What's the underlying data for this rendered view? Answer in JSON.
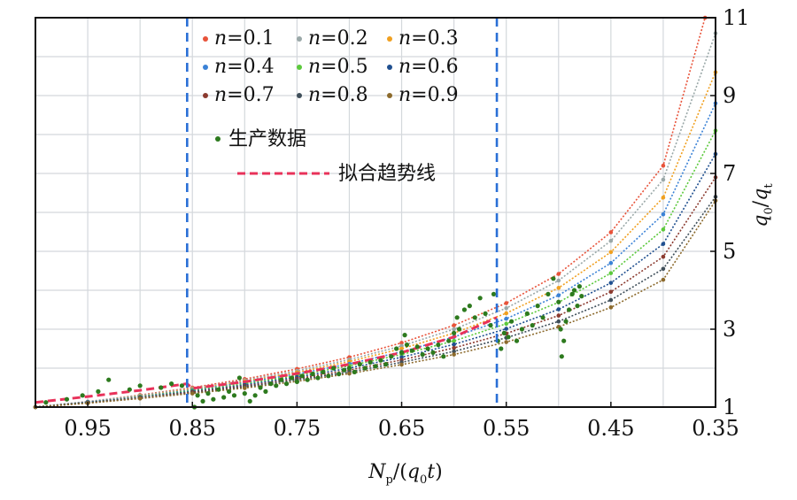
{
  "chart_data": {
    "type": "line",
    "xlabel": "Np/(q0t)",
    "ylabel": "q0/qt",
    "x_axis": {
      "reversed": true,
      "xlim": [
        1.0,
        0.35
      ],
      "ticks": [
        0.95,
        0.85,
        0.75,
        0.65,
        0.55,
        0.45,
        0.35
      ],
      "tick_labels": [
        "0.95",
        "0.85",
        "0.75",
        "0.65",
        "0.55",
        "0.45",
        "0.35"
      ]
    },
    "y_axis": {
      "position": "right",
      "ylim": [
        1,
        11
      ],
      "ticks": [
        1,
        3,
        5,
        7,
        9,
        11
      ],
      "tick_labels": [
        "1",
        "3",
        "5",
        "7",
        "9",
        "11"
      ]
    },
    "grid": true,
    "legend_position": "top",
    "vertical_markers": [
      0.855,
      0.559
    ],
    "series": [
      {
        "name": "n=0.1",
        "n_label": "n",
        "value_label": "=0.1",
        "color": "#e8533a",
        "x": [
          1.0,
          0.95,
          0.9,
          0.85,
          0.8,
          0.75,
          0.7,
          0.65,
          0.6,
          0.55,
          0.5,
          0.45,
          0.4,
          0.36
        ],
        "y": [
          1.0,
          1.14,
          1.31,
          1.5,
          1.72,
          1.98,
          2.28,
          2.65,
          3.1,
          3.67,
          4.42,
          5.49,
          7.2,
          11.0
        ]
      },
      {
        "name": "n=0.2",
        "n_label": "n",
        "value_label": "=0.2",
        "color": "#9aa8a8",
        "x": [
          1.0,
          0.95,
          0.9,
          0.85,
          0.8,
          0.75,
          0.7,
          0.65,
          0.6,
          0.55,
          0.5,
          0.45,
          0.4,
          0.35
        ],
        "y": [
          1.0,
          1.14,
          1.3,
          1.48,
          1.69,
          1.93,
          2.22,
          2.57,
          3.0,
          3.54,
          4.25,
          5.27,
          6.84,
          10.6
        ]
      },
      {
        "name": "n=0.3",
        "n_label": "n",
        "value_label": "=0.3",
        "color": "#f0a020",
        "x": [
          1.0,
          0.95,
          0.9,
          0.85,
          0.8,
          0.75,
          0.7,
          0.65,
          0.6,
          0.55,
          0.5,
          0.45,
          0.4,
          0.35
        ],
        "y": [
          1.0,
          1.13,
          1.28,
          1.46,
          1.66,
          1.89,
          2.17,
          2.5,
          2.9,
          3.41,
          4.06,
          4.98,
          6.38,
          9.6
        ]
      },
      {
        "name": "n=0.4",
        "n_label": "n",
        "value_label": "=0.4",
        "color": "#3b82d6",
        "x": [
          1.0,
          0.95,
          0.9,
          0.85,
          0.8,
          0.75,
          0.7,
          0.65,
          0.6,
          0.55,
          0.5,
          0.45,
          0.4,
          0.35
        ],
        "y": [
          1.0,
          1.13,
          1.27,
          1.44,
          1.63,
          1.85,
          2.11,
          2.42,
          2.8,
          3.27,
          3.87,
          4.7,
          5.95,
          8.8
        ]
      },
      {
        "name": "n=0.5",
        "n_label": "n",
        "value_label": "=0.5",
        "color": "#5cc93c",
        "x": [
          1.0,
          0.95,
          0.9,
          0.85,
          0.8,
          0.75,
          0.7,
          0.65,
          0.6,
          0.55,
          0.5,
          0.45,
          0.4,
          0.35
        ],
        "y": [
          1.0,
          1.12,
          1.26,
          1.42,
          1.6,
          1.81,
          2.06,
          2.35,
          2.7,
          3.14,
          3.69,
          4.44,
          5.56,
          8.1
        ]
      },
      {
        "name": "n=0.6",
        "n_label": "n",
        "value_label": "=0.6",
        "color": "#1f4f8f",
        "x": [
          1.0,
          0.95,
          0.9,
          0.85,
          0.8,
          0.75,
          0.7,
          0.65,
          0.6,
          0.55,
          0.5,
          0.45,
          0.4,
          0.35
        ],
        "y": [
          1.0,
          1.12,
          1.25,
          1.4,
          1.57,
          1.77,
          2.0,
          2.28,
          2.61,
          3.01,
          3.51,
          4.19,
          5.19,
          7.5
        ]
      },
      {
        "name": "n=0.7",
        "n_label": "n",
        "value_label": "=0.7",
        "color": "#8b3a2f",
        "x": [
          1.0,
          0.95,
          0.9,
          0.85,
          0.8,
          0.75,
          0.7,
          0.65,
          0.6,
          0.55,
          0.5,
          0.45,
          0.4,
          0.35
        ],
        "y": [
          1.0,
          1.11,
          1.24,
          1.38,
          1.54,
          1.73,
          1.95,
          2.21,
          2.52,
          2.89,
          3.35,
          3.96,
          4.86,
          6.9
        ]
      },
      {
        "name": "n=0.8",
        "n_label": "n",
        "value_label": "=0.8",
        "color": "#3f4f5a",
        "x": [
          1.0,
          0.95,
          0.9,
          0.85,
          0.8,
          0.75,
          0.7,
          0.65,
          0.6,
          0.55,
          0.5,
          0.45,
          0.4,
          0.35
        ],
        "y": [
          1.0,
          1.11,
          1.23,
          1.36,
          1.52,
          1.7,
          1.9,
          2.15,
          2.43,
          2.78,
          3.2,
          3.75,
          4.55,
          6.4
        ]
      },
      {
        "name": "n=0.9",
        "n_label": "n",
        "value_label": "=0.9",
        "color": "#8c6a2c",
        "x": [
          1.0,
          0.95,
          0.9,
          0.85,
          0.8,
          0.75,
          0.7,
          0.65,
          0.6,
          0.55,
          0.5,
          0.45,
          0.4,
          0.35
        ],
        "y": [
          1.0,
          1.1,
          1.22,
          1.35,
          1.49,
          1.66,
          1.86,
          2.09,
          2.35,
          2.67,
          3.06,
          3.56,
          4.27,
          6.3
        ]
      },
      {
        "name": "拟合趋势线",
        "style": "dashed",
        "color": "#e8325a",
        "x": [
          1.0,
          0.95,
          0.9,
          0.855,
          0.85,
          0.8,
          0.75,
          0.7,
          0.65,
          0.6,
          0.559
        ],
        "y": [
          1.12,
          1.27,
          1.43,
          1.6,
          1.48,
          1.65,
          1.86,
          2.1,
          2.4,
          2.8,
          3.3
        ]
      },
      {
        "name": "生产数据",
        "style": "scatter",
        "color": "#2d7a1e",
        "points": [
          [
            0.99,
            1.12
          ],
          [
            0.97,
            1.2
          ],
          [
            0.955,
            1.3
          ],
          [
            0.94,
            1.4
          ],
          [
            0.93,
            1.7
          ],
          [
            0.91,
            1.45
          ],
          [
            0.9,
            1.55
          ],
          [
            0.88,
            1.5
          ],
          [
            0.87,
            1.6
          ],
          [
            0.86,
            1.55
          ],
          [
            0.848,
            1.0
          ],
          [
            0.845,
            1.3
          ],
          [
            0.84,
            1.15
          ],
          [
            0.835,
            1.35
          ],
          [
            0.83,
            1.2
          ],
          [
            0.825,
            1.45
          ],
          [
            0.82,
            1.25
          ],
          [
            0.815,
            1.4
          ],
          [
            0.81,
            1.3
          ],
          [
            0.805,
            1.75
          ],
          [
            0.8,
            1.35
          ],
          [
            0.795,
            1.15
          ],
          [
            0.79,
            1.3
          ],
          [
            0.785,
            1.5
          ],
          [
            0.78,
            1.4
          ],
          [
            0.775,
            1.6
          ],
          [
            0.77,
            1.55
          ],
          [
            0.765,
            1.7
          ],
          [
            0.76,
            1.6
          ],
          [
            0.755,
            1.75
          ],
          [
            0.75,
            1.65
          ],
          [
            0.745,
            1.8
          ],
          [
            0.74,
            1.7
          ],
          [
            0.735,
            1.85
          ],
          [
            0.73,
            1.75
          ],
          [
            0.725,
            1.9
          ],
          [
            0.72,
            1.8
          ],
          [
            0.715,
            2.0
          ],
          [
            0.71,
            1.85
          ],
          [
            0.705,
            1.95
          ],
          [
            0.7,
            2.0
          ],
          [
            0.695,
            1.9
          ],
          [
            0.69,
            2.1
          ],
          [
            0.685,
            2.0
          ],
          [
            0.68,
            2.15
          ],
          [
            0.675,
            2.05
          ],
          [
            0.67,
            2.2
          ],
          [
            0.665,
            2.1
          ],
          [
            0.66,
            2.3
          ],
          [
            0.655,
            2.5
          ],
          [
            0.65,
            2.4
          ],
          [
            0.647,
            2.85
          ],
          [
            0.645,
            2.6
          ],
          [
            0.64,
            2.45
          ],
          [
            0.635,
            2.55
          ],
          [
            0.63,
            2.35
          ],
          [
            0.625,
            2.5
          ],
          [
            0.62,
            2.4
          ],
          [
            0.615,
            2.6
          ],
          [
            0.61,
            2.3
          ],
          [
            0.605,
            2.7
          ],
          [
            0.6,
            2.9
          ],
          [
            0.597,
            3.3
          ],
          [
            0.595,
            3.0
          ],
          [
            0.59,
            3.5
          ],
          [
            0.585,
            3.6
          ],
          [
            0.58,
            3.3
          ],
          [
            0.575,
            3.8
          ],
          [
            0.57,
            3.4
          ],
          [
            0.565,
            3.1
          ],
          [
            0.562,
            3.9
          ],
          [
            0.558,
            2.7
          ],
          [
            0.555,
            2.5
          ],
          [
            0.552,
            2.9
          ],
          [
            0.548,
            2.8
          ],
          [
            0.545,
            3.2
          ],
          [
            0.54,
            2.7
          ],
          [
            0.535,
            3.0
          ],
          [
            0.53,
            3.4
          ],
          [
            0.525,
            3.1
          ],
          [
            0.52,
            3.6
          ],
          [
            0.515,
            3.3
          ],
          [
            0.51,
            3.9
          ],
          [
            0.505,
            4.3
          ],
          [
            0.5,
            3.7
          ],
          [
            0.498,
            3.0
          ],
          [
            0.497,
            2.3
          ],
          [
            0.495,
            2.7
          ],
          [
            0.493,
            3.2
          ],
          [
            0.49,
            3.5
          ],
          [
            0.487,
            3.9
          ],
          [
            0.485,
            4.0
          ],
          [
            0.482,
            3.6
          ],
          [
            0.48,
            4.1
          ],
          [
            0.478,
            3.85
          ]
        ]
      }
    ]
  }
}
